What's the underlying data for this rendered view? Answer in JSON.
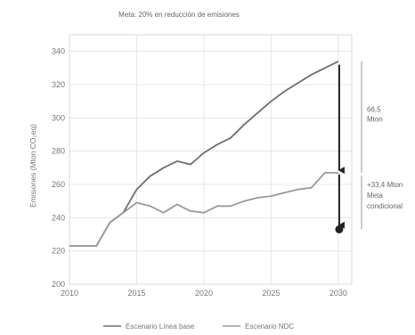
{
  "chart_data": {
    "type": "line",
    "title": "Meta: 20% en reducción de emisiones",
    "ylabel": "Emisiones (Mton CO₂eq)",
    "xlabel": "",
    "xlim": [
      2010,
      2031
    ],
    "ylim": [
      200,
      350
    ],
    "x_ticks": [
      "2010",
      "2015",
      "2020",
      "2025",
      "2030"
    ],
    "y_ticks": [
      "200",
      "220",
      "240",
      "260",
      "280",
      "300",
      "320",
      "340"
    ],
    "grid": true,
    "series": [
      {
        "name": "Escenario Línea base",
        "color": "#6f6f6f",
        "points": [
          [
            2010,
            223
          ],
          [
            2011,
            223
          ],
          [
            2012,
            223
          ],
          [
            2013,
            237
          ],
          [
            2014,
            243
          ],
          [
            2015,
            257
          ],
          [
            2016,
            265
          ],
          [
            2017,
            270
          ],
          [
            2018,
            274
          ],
          [
            2019,
            272
          ],
          [
            2020,
            279
          ],
          [
            2021,
            284
          ],
          [
            2022,
            288
          ],
          [
            2023,
            296
          ],
          [
            2024,
            303
          ],
          [
            2025,
            310
          ],
          [
            2026,
            316
          ],
          [
            2027,
            321
          ],
          [
            2028,
            326
          ],
          [
            2029,
            330
          ],
          [
            2030,
            334
          ]
        ]
      },
      {
        "name": "Escenario NDC",
        "color": "#9a9a9a",
        "points": [
          [
            2010,
            223
          ],
          [
            2011,
            223
          ],
          [
            2012,
            223
          ],
          [
            2013,
            237
          ],
          [
            2014,
            243
          ],
          [
            2015,
            249
          ],
          [
            2016,
            247
          ],
          [
            2017,
            243
          ],
          [
            2018,
            248
          ],
          [
            2019,
            244
          ],
          [
            2020,
            243
          ],
          [
            2021,
            247
          ],
          [
            2022,
            247
          ],
          [
            2023,
            250
          ],
          [
            2024,
            252
          ],
          [
            2025,
            253
          ],
          [
            2026,
            255
          ],
          [
            2027,
            257
          ],
          [
            2028,
            258
          ],
          [
            2029,
            267
          ],
          [
            2030,
            267
          ]
        ]
      }
    ],
    "target_point": {
      "x": 2030,
      "y": 233
    },
    "annotations": [
      {
        "text_lines": [
          "66,5",
          "Mton"
        ]
      },
      {
        "text_lines": [
          "+33,4 Mton",
          "Meta",
          "condicional"
        ]
      }
    ]
  }
}
